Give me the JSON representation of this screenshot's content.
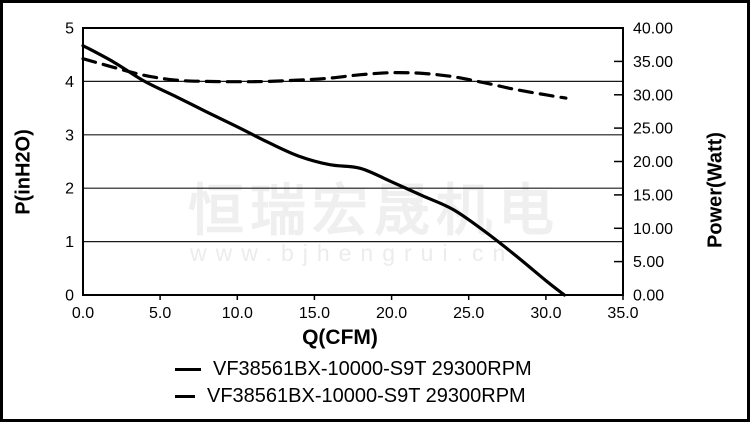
{
  "watermark": {
    "text": "恒瑞宏晟机电",
    "url": "www.bjhengrui.cn"
  },
  "colors": {
    "background": "#ffffff",
    "frame_border": "#000000",
    "axis": "#000000",
    "gridline": "#1a1a1a",
    "line": "#000000",
    "text": "#000000",
    "watermark": "#efefef"
  },
  "chart_data": {
    "type": "line",
    "title": "",
    "xlabel": "Q(CFM)",
    "ylabel_left": "P(inH2O)",
    "ylabel_right": "Power(Watt)",
    "xlim": [
      0,
      35
    ],
    "ylim_left": [
      0,
      5
    ],
    "ylim_right": [
      0,
      40
    ],
    "x_tick_values": [
      0,
      5,
      10,
      15,
      20,
      25,
      30,
      35
    ],
    "x_tick_labels": [
      "0.0",
      "5.0",
      "10.0",
      "15.0",
      "20.0",
      "25.0",
      "30.0",
      "35.0"
    ],
    "y_left_tick_values": [
      0,
      1,
      2,
      3,
      4,
      5
    ],
    "y_left_tick_labels": [
      "0",
      "1",
      "2",
      "3",
      "4",
      "5"
    ],
    "y_right_tick_values": [
      0,
      5,
      10,
      15,
      20,
      25,
      30,
      35,
      40
    ],
    "y_right_tick_labels": [
      "0.00",
      "5.00",
      "10.00",
      "15.00",
      "20.00",
      "25.00",
      "30.00",
      "35.00",
      "40.00"
    ],
    "gridline_values_left": [
      1,
      2,
      3,
      4
    ],
    "grid": true,
    "legend_position": "bottom",
    "series": [
      {
        "name": "VF38561BX-10000-S9T 29300RPM",
        "axis": "left",
        "line_style": "solid",
        "unit": "inH2O",
        "points": [
          [
            0,
            4.67
          ],
          [
            2,
            4.36
          ],
          [
            4,
            4.0
          ],
          [
            6,
            3.72
          ],
          [
            8,
            3.43
          ],
          [
            10,
            3.15
          ],
          [
            12,
            2.86
          ],
          [
            14,
            2.6
          ],
          [
            16,
            2.44
          ],
          [
            18,
            2.37
          ],
          [
            20,
            2.12
          ],
          [
            22,
            1.86
          ],
          [
            24,
            1.6
          ],
          [
            26,
            1.2
          ],
          [
            28,
            0.75
          ],
          [
            30,
            0.27
          ],
          [
            31.2,
            0
          ]
        ]
      },
      {
        "name": "VF38561BX-10000-S9T 29300RPM",
        "axis": "right",
        "line_style": "dashed",
        "unit": "Watt",
        "points": [
          [
            0,
            35.4
          ],
          [
            2,
            34.1
          ],
          [
            4,
            32.9
          ],
          [
            6,
            32.2
          ],
          [
            8,
            32.0
          ],
          [
            10,
            31.95
          ],
          [
            12,
            32.0
          ],
          [
            14,
            32.2
          ],
          [
            16,
            32.5
          ],
          [
            18,
            33.0
          ],
          [
            20,
            33.3
          ],
          [
            22,
            33.2
          ],
          [
            24,
            32.7
          ],
          [
            26,
            31.8
          ],
          [
            28,
            30.8
          ],
          [
            30,
            30.0
          ],
          [
            31.3,
            29.5
          ]
        ]
      }
    ]
  }
}
